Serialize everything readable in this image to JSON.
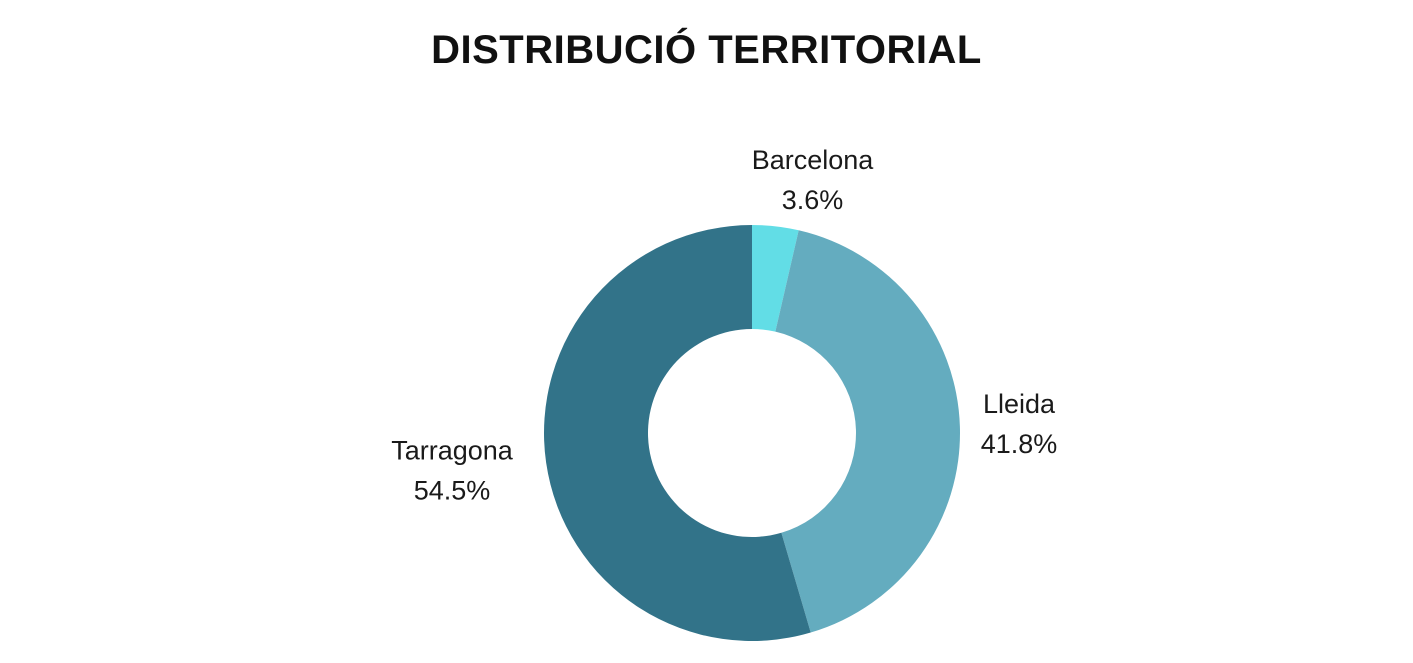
{
  "chart_data": {
    "type": "pie",
    "title": "DISTRIBUCIÓ TERRITORIAL",
    "donut": true,
    "slices": [
      {
        "label": "Barcelona",
        "value": 3.6,
        "value_label": "3.6%",
        "color": "#62DDE6"
      },
      {
        "label": "Lleida",
        "value": 41.8,
        "value_label": "41.8%",
        "color": "#64ACBF"
      },
      {
        "label": "Tarragona",
        "value": 54.5,
        "value_label": "54.5%",
        "color": "#327389"
      }
    ],
    "start_angle": "12 o'clock",
    "direction": "clockwise",
    "legend": "none"
  }
}
